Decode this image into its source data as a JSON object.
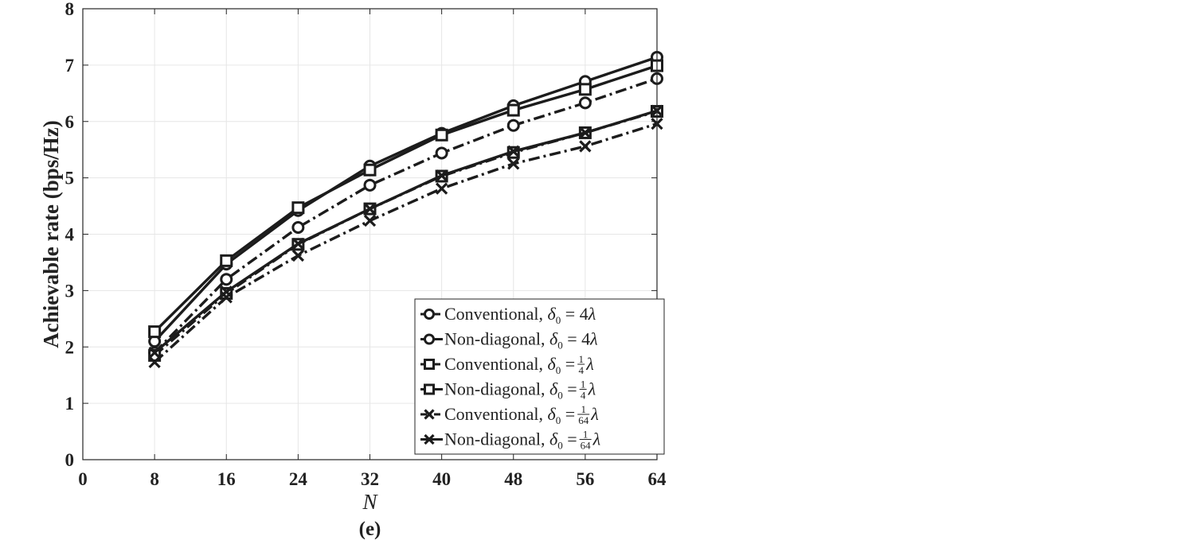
{
  "chart_data": {
    "type": "line",
    "xlabel": "N",
    "ylabel": "Achievable rate (bps/Hz)",
    "panel_label": "(e)",
    "xlim": [
      0,
      64
    ],
    "ylim": [
      0,
      8
    ],
    "xticks": [
      0,
      8,
      16,
      24,
      32,
      40,
      48,
      56,
      64
    ],
    "yticks": [
      0,
      1,
      2,
      3,
      4,
      5,
      6,
      7,
      8
    ],
    "x_tick_labels": [
      "0",
      "8",
      "16",
      "24",
      "32",
      "40",
      "48",
      "56",
      "64"
    ],
    "y_tick_labels": [
      "0",
      "1",
      "2",
      "3",
      "4",
      "5",
      "6",
      "7",
      "8"
    ],
    "grid": true,
    "legend_position": "bottom-right",
    "x": [
      8,
      16,
      24,
      32,
      40,
      48,
      56,
      64
    ],
    "series": [
      {
        "id": "conv-4",
        "name": "Conventional, δ0 = 4λ",
        "prefix": "Conventional, ",
        "delta": "4",
        "marker": "circle",
        "dashed": true,
        "values": [
          1.9,
          3.2,
          4.12,
          4.87,
          5.44,
          5.93,
          6.33,
          6.76
        ]
      },
      {
        "id": "nd-4",
        "name": "Non-diagonal, δ0 = 4λ",
        "prefix": "Non-diagonal, ",
        "delta": "4",
        "marker": "circle",
        "dashed": false,
        "values": [
          2.1,
          3.47,
          4.42,
          5.21,
          5.79,
          6.28,
          6.71,
          7.14
        ]
      },
      {
        "id": "conv-1-4",
        "name": "Conventional, δ0 = 1/4 λ",
        "prefix": "Conventional, ",
        "delta_num": "1",
        "delta_den": "4",
        "marker": "square",
        "dashed": true,
        "values": [
          1.85,
          2.95,
          3.82,
          4.45,
          5.03,
          5.45,
          5.8,
          6.18
        ]
      },
      {
        "id": "nd-1-4",
        "name": "Non-diagonal, δ0 = 1/4 λ",
        "prefix": "Non-diagonal, ",
        "delta_num": "1",
        "delta_den": "4",
        "marker": "square",
        "dashed": false,
        "values": [
          2.27,
          3.53,
          4.47,
          5.14,
          5.76,
          6.2,
          6.57,
          6.99
        ]
      },
      {
        "id": "conv-1-64",
        "name": "Conventional, δ0 = 1/64 λ",
        "prefix": "Conventional, ",
        "delta_num": "1",
        "delta_den": "64",
        "marker": "x",
        "dashed": true,
        "values": [
          1.73,
          2.88,
          3.62,
          4.24,
          4.81,
          5.25,
          5.56,
          5.96
        ]
      },
      {
        "id": "nd-1-64",
        "name": "Non-diagonal, δ0 = 1/64 λ",
        "prefix": "Non-diagonal, ",
        "delta_num": "1",
        "delta_den": "64",
        "marker": "x",
        "dashed": false,
        "values": [
          1.9,
          2.98,
          3.83,
          4.45,
          5.04,
          5.47,
          5.8,
          6.19
        ]
      }
    ]
  }
}
